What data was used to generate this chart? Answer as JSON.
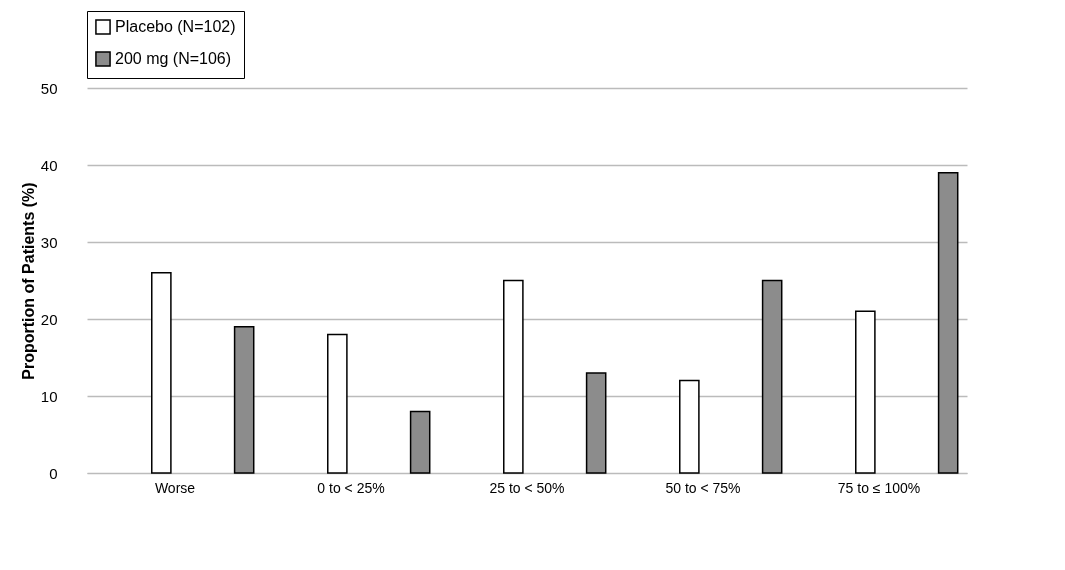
{
  "chart_data": {
    "type": "bar",
    "ylabel": "Proportion of Patients (%)",
    "categories": [
      "Worse",
      "0 to < 25%",
      "25 to < 50%",
      "50 to < 75%",
      "75 to ≤ 100%"
    ],
    "series": [
      {
        "name": "Placebo (N=102)",
        "color": "#ffffff",
        "values": [
          26,
          18,
          25,
          12,
          21
        ]
      },
      {
        "name": "200 mg (N=106)",
        "color": "#8c8c8c",
        "values": [
          19,
          8,
          13,
          25,
          39
        ]
      }
    ],
    "ylim": [
      0,
      50
    ],
    "yticks": [
      0,
      10,
      20,
      30,
      40,
      50
    ],
    "grid": "y",
    "legend": "top left"
  }
}
